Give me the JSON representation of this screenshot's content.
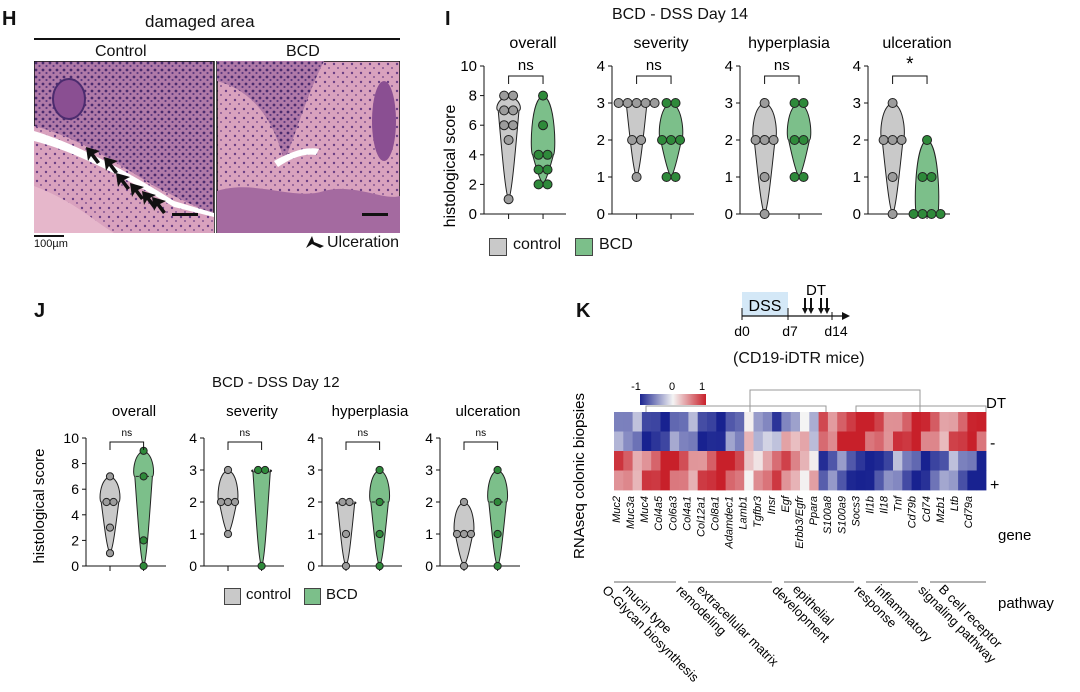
{
  "panel_h": {
    "letter": "H",
    "header": "damaged area",
    "col_control": "Control",
    "col_bcd": "BCD",
    "scale_label": "100µm",
    "legend": "Ulceration"
  },
  "panel_i": {
    "letter": "I",
    "title": "BCD - DSS Day 14",
    "ylabel": "histological score",
    "legend": [
      "control",
      "BCD"
    ]
  },
  "panel_j": {
    "letter": "J",
    "title": "BCD - DSS Day 12",
    "ylabel": "histological score",
    "legend": [
      "control",
      "BCD"
    ]
  },
  "panel_k": {
    "letter": "K",
    "timeline": {
      "phase": "DSS",
      "treatment": "DT",
      "ticks": [
        "d0",
        "d7",
        "d14"
      ],
      "caption": "(CD19-iDTR mice)"
    },
    "colorbar_ticks": [
      "-1",
      "0",
      "1"
    ],
    "row_axis_label": "RNAseq colonic biopsies",
    "dt_label": "DT",
    "dt_minus": "-",
    "dt_plus": "+",
    "gene_label": "gene",
    "pathway_label": "pathway",
    "genes": [
      "Muc2",
      "Muc3a",
      "Muc4",
      "Col4a5",
      "Col6a3",
      "Col4a1",
      "Col12a1",
      "Col8a1",
      "Adamdec1",
      "Lamb1",
      "Tgfbr3",
      "Insr",
      "Egf",
      "Erbb3/Egfr",
      "Ppara",
      "S100a8",
      "S100a9",
      "Socs3",
      "Il1b",
      "Il18",
      "Tnf",
      "Cd79b",
      "Cd74",
      "Mzb1",
      "Ltb",
      "Cd79a"
    ],
    "pathways": [
      "mucin type O-Glycan biosynthesis",
      "extracellular matrix remodeling",
      "epithelial development",
      "inflammatory response",
      "B cell receptor signaling pathway"
    ]
  },
  "colors": {
    "control": "#c9c9c9",
    "bcd": "#7cbf8a",
    "control_dot": "#9c9c9c",
    "bcd_dot": "#2e8a3a",
    "heat_low": "#2a3aa8",
    "heat_high": "#c8202a"
  },
  "chart_data": [
    {
      "type": "violin",
      "panel": "I",
      "subtitle": "overall",
      "ylim": [
        0,
        10
      ],
      "yticks": [
        0,
        2,
        4,
        6,
        8,
        10
      ],
      "sig": "ns",
      "series": [
        {
          "name": "control",
          "values": [
            1,
            5,
            6,
            6,
            7,
            7,
            8,
            8
          ]
        },
        {
          "name": "BCD",
          "values": [
            2,
            2,
            3,
            3,
            4,
            4,
            6,
            8
          ]
        }
      ]
    },
    {
      "type": "violin",
      "panel": "I",
      "subtitle": "severity",
      "ylim": [
        0,
        4
      ],
      "yticks": [
        0,
        1,
        2,
        3,
        4
      ],
      "sig": "ns",
      "series": [
        {
          "name": "control",
          "values": [
            1,
            2,
            2,
            3,
            3,
            3,
            3,
            3
          ]
        },
        {
          "name": "BCD",
          "values": [
            1,
            1,
            2,
            2,
            2,
            3,
            3
          ]
        }
      ]
    },
    {
      "type": "violin",
      "panel": "I",
      "subtitle": "hyperplasia",
      "ylim": [
        0,
        4
      ],
      "yticks": [
        0,
        1,
        2,
        3,
        4
      ],
      "sig": "ns",
      "series": [
        {
          "name": "control",
          "values": [
            0,
            1,
            2,
            2,
            2,
            3
          ]
        },
        {
          "name": "BCD",
          "values": [
            1,
            1,
            2,
            2,
            3,
            3
          ]
        }
      ]
    },
    {
      "type": "violin",
      "panel": "I",
      "subtitle": "ulceration",
      "ylim": [
        0,
        4
      ],
      "yticks": [
        0,
        1,
        2,
        3,
        4
      ],
      "sig": "*",
      "series": [
        {
          "name": "control",
          "values": [
            0,
            1,
            2,
            2,
            2,
            3
          ]
        },
        {
          "name": "BCD",
          "values": [
            0,
            0,
            0,
            0,
            1,
            1,
            2
          ]
        }
      ]
    },
    {
      "type": "violin",
      "panel": "J",
      "subtitle": "overall",
      "ylim": [
        0,
        10
      ],
      "yticks": [
        0,
        2,
        4,
        6,
        8,
        10
      ],
      "sig": "ns",
      "series": [
        {
          "name": "control",
          "values": [
            1,
            3,
            5,
            5,
            7
          ]
        },
        {
          "name": "BCD",
          "values": [
            0,
            2,
            7,
            9
          ]
        }
      ]
    },
    {
      "type": "violin",
      "panel": "J",
      "subtitle": "severity",
      "ylim": [
        0,
        4
      ],
      "yticks": [
        0,
        1,
        2,
        3,
        4
      ],
      "sig": "ns",
      "series": [
        {
          "name": "control",
          "values": [
            1,
            2,
            2,
            2,
            3
          ]
        },
        {
          "name": "BCD",
          "values": [
            0,
            3,
            3
          ]
        }
      ]
    },
    {
      "type": "violin",
      "panel": "J",
      "subtitle": "hyperplasia",
      "ylim": [
        0,
        4
      ],
      "yticks": [
        0,
        1,
        2,
        3,
        4
      ],
      "sig": "ns",
      "series": [
        {
          "name": "control",
          "values": [
            0,
            1,
            2,
            2
          ]
        },
        {
          "name": "BCD",
          "values": [
            0,
            1,
            2,
            3
          ]
        }
      ]
    },
    {
      "type": "violin",
      "panel": "J",
      "subtitle": "ulceration",
      "ylim": [
        0,
        4
      ],
      "yticks": [
        0,
        1,
        2,
        3,
        4
      ],
      "sig": "ns",
      "series": [
        {
          "name": "control",
          "values": [
            0,
            1,
            1,
            1,
            2
          ]
        },
        {
          "name": "BCD",
          "values": [
            0,
            1,
            2,
            3
          ]
        }
      ]
    }
  ]
}
